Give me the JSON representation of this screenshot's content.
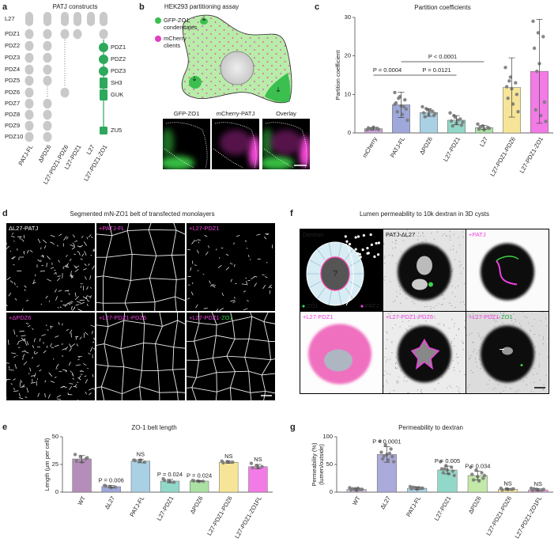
{
  "panels": {
    "a": {
      "letter": "a",
      "title": "PATJ constructs",
      "patj_domains": [
        "L27",
        "PDZ1",
        "PDZ2",
        "PDZ3",
        "PDZ4",
        "PDZ5",
        "PDZ6",
        "PDZ7",
        "PDZ8",
        "PDZ9",
        "PDZ10"
      ],
      "constructs": [
        "PATJ-FL",
        "ΔPDZ6",
        "L27-PDZ1-PDZ6",
        "L27-PDZ1",
        "L27",
        "L27-PDZ1-ZO1"
      ],
      "zo1_domains": [
        "PDZ1",
        "PDZ2",
        "PDZ3",
        "SH3",
        "GUK",
        "ZU5"
      ]
    },
    "b": {
      "letter": "b",
      "title": "HEK293 partitioning assay",
      "legend": [
        [
          "GFP-ZO1",
          "condensates"
        ],
        [
          "mCherry",
          "clients"
        ]
      ],
      "image_labels": [
        "GFP-ZO1",
        "mCherry-PATJ",
        "Overlay"
      ]
    },
    "c": {
      "letter": "c"
    },
    "d": {
      "letter": "d",
      "title": "Segmented mN-ZO1 belt of transfected monolayers",
      "tiles": [
        [
          "ΔL27-PATJ"
        ],
        [
          "+PATJ-FL"
        ],
        [
          "+L27-PDZ1"
        ],
        [
          "+ΔPDZ6"
        ],
        [
          "+L27-PDZ1-PDZ6"
        ],
        [
          "+L27-PDZ1-",
          "ZO1"
        ]
      ]
    },
    "e": {
      "letter": "e"
    },
    "f": {
      "letter": "f",
      "title": "Lumen permeability to 10k dextran in 3D cysts",
      "diagram": {
        "label": "Dextran",
        "question": "?",
        "keys": [
          "ZO1",
          "PATJ"
        ]
      },
      "tiles": [
        [
          "PATJ-ΔL27"
        ],
        [
          "+PATJ"
        ],
        [
          "+L27-PDZ1"
        ],
        [
          "+L27-PDZ1-PDZ6"
        ],
        [
          "+L27-PDZ1-",
          "ZO1"
        ]
      ]
    },
    "g": {
      "letter": "g"
    }
  },
  "chart_data": [
    {
      "type": "bar",
      "title": "Partition coefficients",
      "ylabel": [
        "Partition coefficient"
      ],
      "categories": [
        "mCherry",
        "PATJ-FL",
        "ΔPDZ6",
        "L27-PDZ1",
        "L27",
        "L27-PDZ1-PDZ6",
        "L27-PDZ1-ZO1"
      ],
      "values": [
        1.1,
        7.3,
        5.3,
        3.3,
        1.4,
        11.8,
        16
      ],
      "errors": [
        0.3,
        3.3,
        1.0,
        1.2,
        0.5,
        7.7,
        13.5
      ],
      "points": [
        [
          0.8,
          1.0,
          1.2,
          1.3,
          1.5,
          0.9,
          1.1
        ],
        [
          10.5,
          9.4,
          8.6,
          7.8,
          7.0,
          6.2,
          5.5,
          4.8,
          3.3,
          9.0,
          6.8,
          7.4
        ],
        [
          6.8,
          6.0,
          5.6,
          5.2,
          4.8,
          4.5,
          4.2,
          5.8,
          5.0,
          6.3
        ],
        [
          5.2,
          4.1,
          3.6,
          3.1,
          2.5,
          2.0,
          1.8,
          3.3,
          2.8,
          4.5
        ],
        [
          2.3,
          1.8,
          1.4,
          1.0,
          0.8,
          1.2,
          1.6
        ],
        [
          17,
          14.5,
          13,
          12,
          11.5,
          10,
          9,
          7.5,
          5.5,
          13.5
        ],
        [
          29,
          26,
          25,
          22,
          18,
          8,
          6,
          4.5,
          3,
          16
        ]
      ],
      "colors": [
        "#c9a3d6",
        "#9ea8da",
        "#a9d0e3",
        "#92d8c8",
        "#abe2a4",
        "#f6e598",
        "#f27be6"
      ],
      "ylim": [
        0,
        30
      ],
      "yticks": [
        0,
        10,
        20,
        30
      ],
      "comparisons": [
        "P = 0.0004",
        "P < 0.0001",
        "P = 0.0121"
      ]
    },
    {
      "type": "bar",
      "title": "ZO-1 belt length",
      "ylabel": [
        "Length (µm per cell)"
      ],
      "categories": [
        "WT",
        "ΔL27",
        "PATJ-FL",
        "L27-PDZ1",
        "ΔPDZ6",
        "L27-PDZ1-PDZ6",
        "L27-PDZ1-ZO1FL"
      ],
      "values": [
        30,
        5,
        28,
        10,
        10,
        27,
        23
      ],
      "errors": [
        3,
        1,
        1.5,
        1.5,
        0.5,
        1,
        2
      ],
      "points": [
        [
          34,
          32,
          30,
          28,
          27,
          31
        ],
        [
          6,
          5,
          4.5,
          5.5,
          4
        ],
        [
          29,
          28,
          27,
          28.5,
          29
        ],
        [
          12,
          10,
          9,
          10.5,
          9.5
        ],
        [
          10.5,
          10,
          9.8,
          10.2,
          9.6
        ],
        [
          28,
          27.5,
          27,
          26.5,
          27.2
        ],
        [
          26,
          24,
          23,
          22,
          22.5
        ]
      ],
      "colors": [
        "#b58dbb",
        "#9ea8da",
        "#a9d0e3",
        "#92d8c8",
        "#abe2a4",
        "#f6e598",
        "#f27be6"
      ],
      "ylim": [
        0,
        50
      ],
      "yticks": [
        0,
        25,
        50
      ],
      "annotations": [
        null,
        "P = 0.006",
        "NS",
        "P = 0.024",
        "P = 0.024",
        "NS",
        "NS"
      ]
    },
    {
      "type": "bar",
      "title": "Permeability to dextran",
      "ylabel": [
        "Permeability (%)",
        "(lumen/outside)"
      ],
      "categories": [
        "WT",
        "ΔL27",
        "PATJ-FL",
        "L27-PDZ1",
        "ΔPDZ6",
        "L27-PDZ1-PDZ6",
        "L27-PDZ1-ZO1FL"
      ],
      "values": [
        5,
        68,
        7,
        40,
        30,
        5,
        4
      ],
      "errors": [
        2,
        14,
        2,
        7,
        8,
        1.5,
        2
      ],
      "points": [
        [
          8,
          6,
          5,
          4,
          3,
          5,
          6,
          7
        ],
        [
          92,
          85,
          78,
          72,
          68,
          64,
          60,
          58,
          55,
          65,
          70
        ],
        [
          10,
          8,
          7,
          6,
          5,
          7,
          9,
          8
        ],
        [
          55,
          48,
          45,
          42,
          40,
          38,
          35,
          33,
          30,
          42
        ],
        [
          45,
          40,
          35,
          32,
          28,
          25,
          22,
          20,
          30
        ],
        [
          7,
          6,
          5,
          4,
          5,
          6
        ],
        [
          7,
          5,
          4,
          3,
          4,
          5,
          6
        ]
      ],
      "colors": [
        "#cbbadb",
        "#aaaadb",
        "#a9d0e3",
        "#92d8c8",
        "#c3e8a8",
        "#f6e598",
        "#f2a2e2"
      ],
      "ylim": [
        0,
        100
      ],
      "yticks": [
        0,
        50,
        100
      ],
      "annotations": [
        null,
        "P < 0.0001",
        null,
        "P = 0.005",
        "P = 0.034",
        "NS",
        "NS"
      ]
    }
  ]
}
